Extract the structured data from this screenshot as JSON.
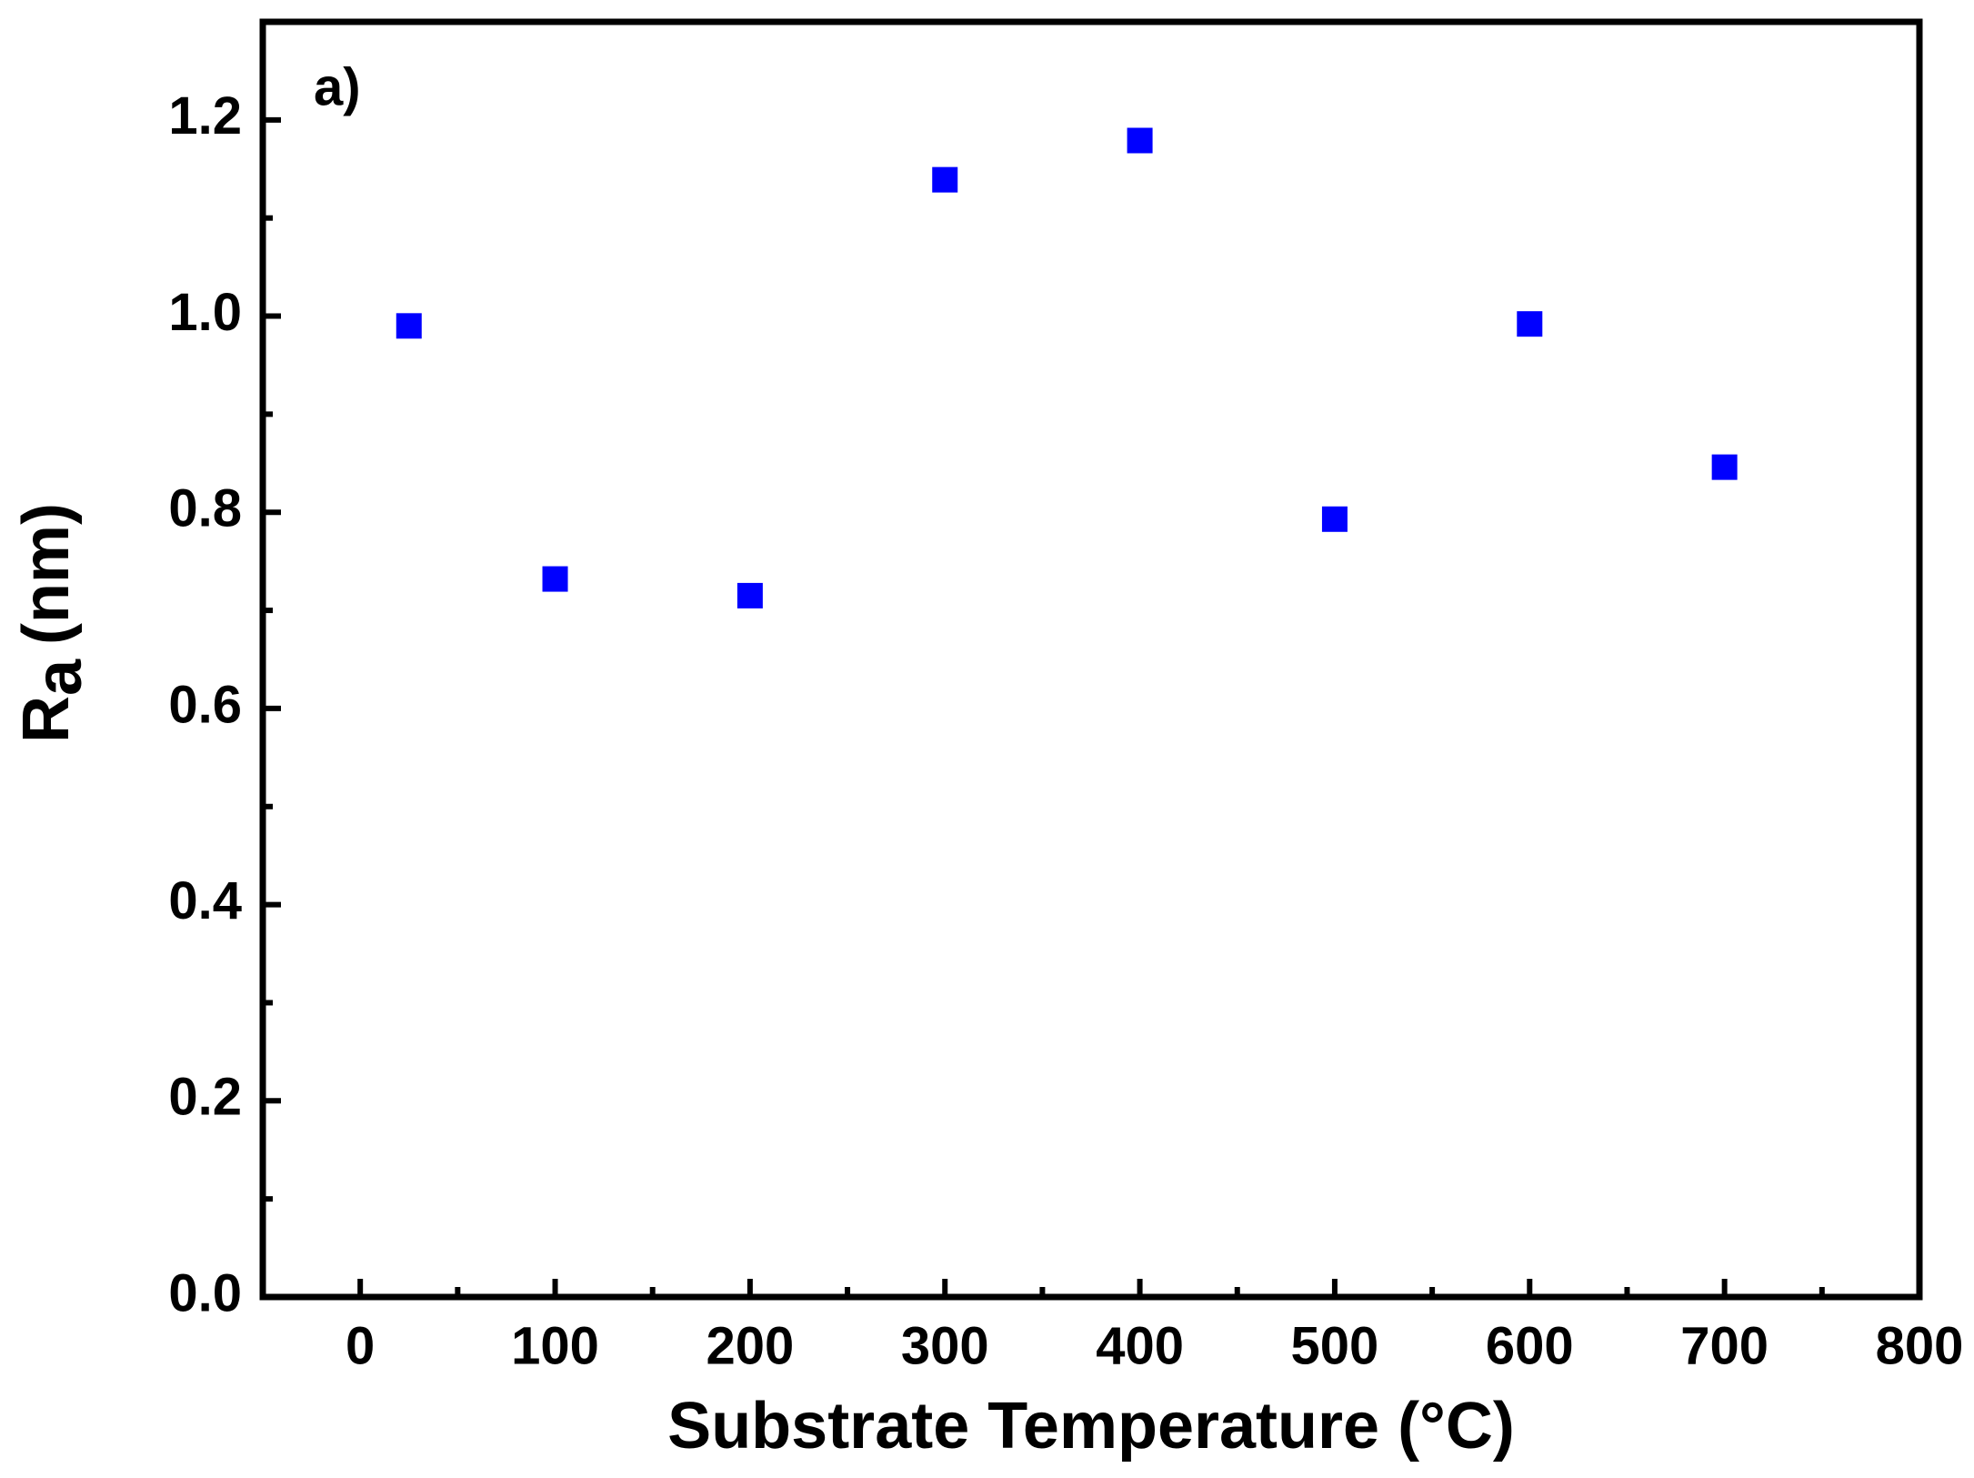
{
  "chart_data": {
    "type": "scatter",
    "x_label": "Substrate Temperature (°C)",
    "y_label": {
      "main": "R",
      "sub": "a",
      "unit": "(nm)"
    },
    "annotation": "a)",
    "x": [
      25,
      100,
      200,
      300,
      400,
      500,
      600,
      700
    ],
    "series": [
      {
        "name": "Ra",
        "color": "#0000ff",
        "values": [
          0.99,
          0.732,
          0.715,
          1.139,
          1.179,
          0.793,
          0.992,
          0.846
        ]
      }
    ],
    "xlim": [
      -50,
      800
    ],
    "ylim": [
      0,
      1.3
    ],
    "xticks": [
      0,
      100,
      200,
      300,
      400,
      500,
      600,
      700,
      800
    ],
    "yticks": [
      {
        "value": 0,
        "label": "0.0"
      },
      {
        "value": 0.2,
        "label": "0.2"
      },
      {
        "value": 0.4,
        "label": "0.4"
      },
      {
        "value": 0.6,
        "label": "0.6"
      },
      {
        "value": 0.8,
        "label": "0.8"
      },
      {
        "value": 1,
        "label": "1.0"
      },
      {
        "value": 1.2,
        "label": "1.2"
      }
    ],
    "xminor": [
      50,
      150,
      250,
      350,
      450,
      550,
      650,
      750
    ],
    "yminor": [
      0.1,
      0.3,
      0.5,
      0.7,
      0.9,
      1.1
    ],
    "grid": false
  }
}
